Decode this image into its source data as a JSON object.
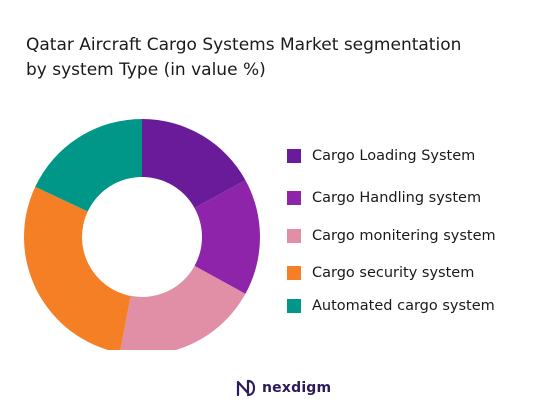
{
  "chart_data": {
    "type": "pie",
    "donut": true,
    "title": " Qatar Aircraft Cargo Systems Market segmentation\nby system Type (in value %)",
    "legend_position": "right",
    "series": [
      {
        "name": "Cargo Loading System",
        "value": 17,
        "color": "#6a1b9a"
      },
      {
        "name": "Cargo Handling system",
        "value": 16,
        "color": "#8e24aa"
      },
      {
        "name": "Cargo monitering system",
        "value": 20,
        "color": "#e08fa6"
      },
      {
        "name": "Cargo security system",
        "value": 29,
        "color": "#f57f25"
      },
      {
        "name": "Automated cargo system",
        "value": 18,
        "color": "#009688"
      }
    ]
  },
  "brand": {
    "name": "nexdigm",
    "color": "#2b1b5c"
  }
}
